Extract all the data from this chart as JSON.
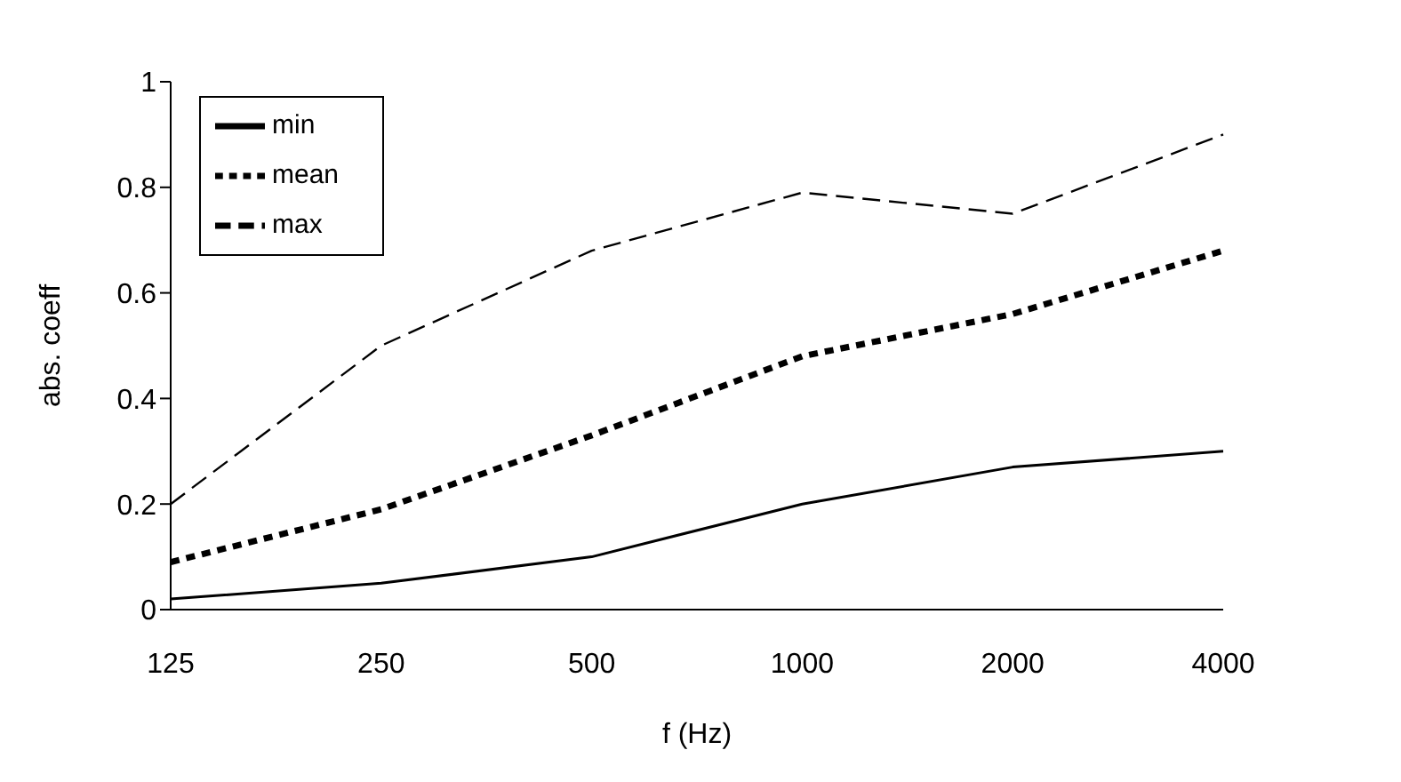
{
  "chart_data": {
    "type": "line",
    "xlabel": "f (Hz)",
    "ylabel": "abs. coeff",
    "categories": [
      "125",
      "250",
      "500",
      "1000",
      "2000",
      "4000"
    ],
    "series": [
      {
        "name": "min",
        "color": "#000000",
        "line_style": "solid",
        "values": [
          0.02,
          0.05,
          0.1,
          0.2,
          0.27,
          0.3
        ]
      },
      {
        "name": "mean",
        "color": "#000000",
        "line_style": "dotted",
        "values": [
          0.09,
          0.19,
          0.33,
          0.48,
          0.56,
          0.68
        ]
      },
      {
        "name": "max",
        "color": "#000000",
        "line_style": "dashed",
        "values": [
          0.2,
          0.5,
          0.68,
          0.79,
          0.75,
          0.9
        ]
      }
    ],
    "ylim": [
      0,
      1
    ],
    "yticks": [
      0,
      0.2,
      0.4,
      0.6,
      0.8,
      1
    ],
    "grid": false,
    "legend": "top left",
    "marker": "none"
  }
}
